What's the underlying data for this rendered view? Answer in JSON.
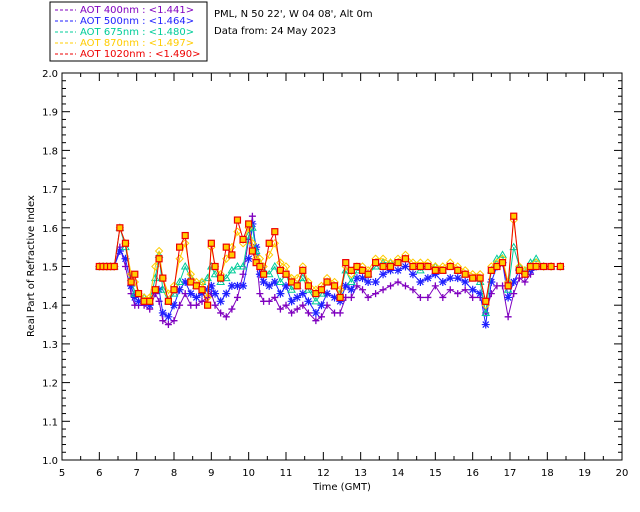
{
  "header": {
    "site": "PML, N 50 22', W 04 08', Alt 0m",
    "date": "Data from: 24 May 2023"
  },
  "chart_data": {
    "type": "line",
    "xlabel": "Time (GMT)",
    "ylabel": "Real Part of Refractive Index",
    "xlim": [
      5,
      20
    ],
    "ylim": [
      1.0,
      2.0
    ],
    "xticks": [
      "5",
      "6",
      "7",
      "8",
      "9",
      "10",
      "11",
      "12",
      "13",
      "14",
      "15",
      "16",
      "17",
      "18",
      "19",
      "20"
    ],
    "yticks": [
      "1.0",
      "1.1",
      "1.2",
      "1.3",
      "1.4",
      "1.5",
      "1.6",
      "1.7",
      "1.8",
      "1.9",
      "2.0"
    ],
    "legend_position": "top-left, outside plot",
    "series": [
      {
        "name": "AOT  400nm : <1.441>",
        "color": "#7f00bf",
        "marker": "plus",
        "x": [
          6.0,
          6.1,
          6.2,
          6.3,
          6.4,
          6.55,
          6.7,
          6.85,
          6.95,
          7.05,
          7.2,
          7.35,
          7.5,
          7.6,
          7.7,
          7.85,
          8.0,
          8.15,
          8.3,
          8.45,
          8.6,
          8.75,
          8.9,
          9.0,
          9.1,
          9.25,
          9.4,
          9.55,
          9.7,
          9.85,
          10.0,
          10.1,
          10.2,
          10.3,
          10.4,
          10.55,
          10.7,
          10.85,
          11.0,
          11.15,
          11.3,
          11.45,
          11.6,
          11.8,
          11.95,
          12.1,
          12.3,
          12.45,
          12.6,
          12.75,
          12.9,
          13.05,
          13.2,
          13.4,
          13.6,
          13.8,
          14.0,
          14.2,
          14.4,
          14.6,
          14.8,
          15.0,
          15.2,
          15.4,
          15.6,
          15.8,
          16.0,
          16.2,
          16.35,
          16.5,
          16.65,
          16.8,
          16.95,
          17.1,
          17.25,
          17.4,
          17.55,
          17.7,
          17.9,
          18.1,
          18.35
        ],
        "values": [
          1.5,
          1.5,
          1.5,
          1.5,
          1.5,
          1.55,
          1.5,
          1.43,
          1.4,
          1.4,
          1.4,
          1.39,
          1.43,
          1.41,
          1.36,
          1.35,
          1.36,
          1.4,
          1.43,
          1.4,
          1.4,
          1.41,
          1.42,
          1.43,
          1.4,
          1.38,
          1.37,
          1.39,
          1.42,
          1.48,
          1.57,
          1.63,
          1.53,
          1.43,
          1.41,
          1.41,
          1.42,
          1.39,
          1.4,
          1.38,
          1.39,
          1.4,
          1.38,
          1.36,
          1.37,
          1.4,
          1.38,
          1.38,
          1.42,
          1.42,
          1.45,
          1.44,
          1.42,
          1.43,
          1.44,
          1.45,
          1.46,
          1.45,
          1.44,
          1.42,
          1.42,
          1.45,
          1.42,
          1.44,
          1.43,
          1.44,
          1.42,
          1.42,
          1.38,
          1.43,
          1.45,
          1.45,
          1.37,
          1.43,
          1.47,
          1.46,
          1.48,
          1.5,
          1.5,
          1.5,
          1.5
        ]
      },
      {
        "name": "AOT  500nm : <1.464>",
        "color": "#1f1fff",
        "marker": "star",
        "x": [
          6.0,
          6.1,
          6.2,
          6.3,
          6.4,
          6.55,
          6.7,
          6.85,
          6.95,
          7.05,
          7.2,
          7.35,
          7.5,
          7.6,
          7.7,
          7.85,
          8.0,
          8.15,
          8.3,
          8.45,
          8.6,
          8.75,
          8.9,
          9.0,
          9.1,
          9.25,
          9.4,
          9.55,
          9.7,
          9.85,
          10.0,
          10.1,
          10.2,
          10.3,
          10.4,
          10.55,
          10.7,
          10.85,
          11.0,
          11.15,
          11.3,
          11.45,
          11.6,
          11.8,
          11.95,
          12.1,
          12.3,
          12.45,
          12.6,
          12.75,
          12.9,
          13.05,
          13.2,
          13.4,
          13.6,
          13.8,
          14.0,
          14.2,
          14.4,
          14.6,
          14.8,
          15.0,
          15.2,
          15.4,
          15.6,
          15.8,
          16.0,
          16.2,
          16.35,
          16.5,
          16.65,
          16.8,
          16.95,
          17.1,
          17.25,
          17.4,
          17.55,
          17.7,
          17.9,
          18.1,
          18.35
        ],
        "values": [
          1.5,
          1.5,
          1.5,
          1.5,
          1.5,
          1.54,
          1.52,
          1.45,
          1.42,
          1.41,
          1.41,
          1.4,
          1.44,
          1.44,
          1.38,
          1.37,
          1.4,
          1.44,
          1.46,
          1.43,
          1.42,
          1.43,
          1.44,
          1.45,
          1.43,
          1.41,
          1.43,
          1.45,
          1.45,
          1.45,
          1.52,
          1.61,
          1.55,
          1.48,
          1.46,
          1.45,
          1.46,
          1.43,
          1.45,
          1.41,
          1.42,
          1.43,
          1.41,
          1.38,
          1.4,
          1.43,
          1.42,
          1.41,
          1.45,
          1.44,
          1.47,
          1.47,
          1.46,
          1.46,
          1.48,
          1.49,
          1.49,
          1.5,
          1.48,
          1.46,
          1.47,
          1.48,
          1.46,
          1.47,
          1.47,
          1.46,
          1.44,
          1.43,
          1.35,
          1.46,
          1.5,
          1.51,
          1.42,
          1.46,
          1.49,
          1.48,
          1.49,
          1.5,
          1.5,
          1.5,
          1.5
        ]
      },
      {
        "name": "AOT  675nm : <1.480>",
        "color": "#00cc99",
        "marker": "triangle",
        "x": [
          6.0,
          6.1,
          6.2,
          6.3,
          6.4,
          6.55,
          6.7,
          6.85,
          6.95,
          7.05,
          7.2,
          7.35,
          7.5,
          7.6,
          7.7,
          7.85,
          8.0,
          8.15,
          8.3,
          8.45,
          8.6,
          8.75,
          8.9,
          9.0,
          9.1,
          9.25,
          9.4,
          9.55,
          9.7,
          9.85,
          10.0,
          10.1,
          10.2,
          10.3,
          10.4,
          10.55,
          10.7,
          10.85,
          11.0,
          11.15,
          11.3,
          11.45,
          11.6,
          11.8,
          11.95,
          12.1,
          12.3,
          12.45,
          12.6,
          12.75,
          12.9,
          13.05,
          13.2,
          13.4,
          13.6,
          13.8,
          14.0,
          14.2,
          14.4,
          14.6,
          14.8,
          15.0,
          15.2,
          15.4,
          15.6,
          15.8,
          16.0,
          16.2,
          16.35,
          16.5,
          16.65,
          16.8,
          16.95,
          17.1,
          17.25,
          17.4,
          17.55,
          17.7,
          17.9,
          18.1,
          18.35
        ],
        "values": [
          1.5,
          1.5,
          1.5,
          1.5,
          1.5,
          1.6,
          1.55,
          1.47,
          1.43,
          1.43,
          1.42,
          1.41,
          1.47,
          1.53,
          1.44,
          1.41,
          1.43,
          1.46,
          1.5,
          1.47,
          1.45,
          1.46,
          1.47,
          1.5,
          1.48,
          1.46,
          1.47,
          1.49,
          1.5,
          1.5,
          1.58,
          1.6,
          1.54,
          1.51,
          1.49,
          1.48,
          1.5,
          1.46,
          1.48,
          1.44,
          1.45,
          1.47,
          1.44,
          1.41,
          1.43,
          1.46,
          1.45,
          1.43,
          1.49,
          1.46,
          1.49,
          1.49,
          1.48,
          1.5,
          1.51,
          1.51,
          1.51,
          1.52,
          1.5,
          1.49,
          1.5,
          1.5,
          1.49,
          1.5,
          1.49,
          1.48,
          1.47,
          1.46,
          1.38,
          1.49,
          1.52,
          1.53,
          1.44,
          1.55,
          1.5,
          1.49,
          1.51,
          1.52,
          1.5,
          1.5,
          1.5
        ]
      },
      {
        "name": "AOT  870nm : <1.497>",
        "color": "#ffcc00",
        "marker": "diamond",
        "x": [
          6.0,
          6.1,
          6.2,
          6.3,
          6.4,
          6.55,
          6.7,
          6.85,
          6.95,
          7.05,
          7.2,
          7.35,
          7.5,
          7.6,
          7.7,
          7.85,
          8.0,
          8.15,
          8.3,
          8.45,
          8.6,
          8.75,
          8.9,
          9.0,
          9.1,
          9.25,
          9.4,
          9.55,
          9.7,
          9.85,
          10.0,
          10.1,
          10.2,
          10.3,
          10.4,
          10.55,
          10.7,
          10.85,
          11.0,
          11.15,
          11.3,
          11.45,
          11.6,
          11.8,
          11.95,
          12.1,
          12.3,
          12.45,
          12.6,
          12.75,
          12.9,
          13.05,
          13.2,
          13.4,
          13.6,
          13.8,
          14.0,
          14.2,
          14.4,
          14.6,
          14.8,
          15.0,
          15.2,
          15.4,
          15.6,
          15.8,
          16.0,
          16.2,
          16.35,
          16.5,
          16.65,
          16.8,
          16.95,
          17.1,
          17.25,
          17.4,
          17.55,
          17.7,
          17.9,
          18.1,
          18.35
        ],
        "values": [
          1.5,
          1.5,
          1.5,
          1.5,
          1.5,
          1.6,
          1.56,
          1.48,
          1.46,
          1.43,
          1.42,
          1.42,
          1.5,
          1.54,
          1.47,
          1.43,
          1.45,
          1.52,
          1.56,
          1.48,
          1.46,
          1.46,
          1.42,
          1.55,
          1.5,
          1.48,
          1.52,
          1.55,
          1.59,
          1.56,
          1.6,
          1.56,
          1.52,
          1.52,
          1.5,
          1.53,
          1.56,
          1.51,
          1.5,
          1.47,
          1.47,
          1.5,
          1.46,
          1.44,
          1.45,
          1.47,
          1.46,
          1.44,
          1.5,
          1.48,
          1.5,
          1.5,
          1.49,
          1.52,
          1.52,
          1.51,
          1.52,
          1.53,
          1.51,
          1.51,
          1.51,
          1.5,
          1.5,
          1.51,
          1.5,
          1.49,
          1.48,
          1.48,
          1.4,
          1.5,
          1.51,
          1.52,
          1.46,
          1.62,
          1.5,
          1.49,
          1.5,
          1.51,
          1.5,
          1.5,
          1.5
        ]
      },
      {
        "name": "AOT 1020nm : <1.490>",
        "color": "#ee0000",
        "marker": "square",
        "x": [
          6.0,
          6.1,
          6.2,
          6.3,
          6.4,
          6.55,
          6.7,
          6.85,
          6.95,
          7.05,
          7.2,
          7.35,
          7.5,
          7.6,
          7.7,
          7.85,
          8.0,
          8.15,
          8.3,
          8.45,
          8.6,
          8.75,
          8.9,
          9.0,
          9.1,
          9.25,
          9.4,
          9.55,
          9.7,
          9.85,
          10.0,
          10.1,
          10.2,
          10.3,
          10.4,
          10.55,
          10.7,
          10.85,
          11.0,
          11.15,
          11.3,
          11.45,
          11.6,
          11.8,
          11.95,
          12.1,
          12.3,
          12.45,
          12.6,
          12.75,
          12.9,
          13.05,
          13.2,
          13.4,
          13.6,
          13.8,
          14.0,
          14.2,
          14.4,
          14.6,
          14.8,
          15.0,
          15.2,
          15.4,
          15.6,
          15.8,
          16.0,
          16.2,
          16.35,
          16.5,
          16.65,
          16.8,
          16.95,
          17.1,
          17.25,
          17.4,
          17.55,
          17.7,
          17.9,
          18.1,
          18.35
        ],
        "values": [
          1.5,
          1.5,
          1.5,
          1.5,
          1.5,
          1.6,
          1.56,
          1.46,
          1.48,
          1.43,
          1.41,
          1.41,
          1.44,
          1.52,
          1.47,
          1.41,
          1.44,
          1.55,
          1.58,
          1.46,
          1.45,
          1.44,
          1.4,
          1.56,
          1.5,
          1.47,
          1.55,
          1.53,
          1.62,
          1.57,
          1.61,
          1.54,
          1.51,
          1.5,
          1.48,
          1.56,
          1.59,
          1.49,
          1.48,
          1.46,
          1.45,
          1.49,
          1.45,
          1.43,
          1.44,
          1.46,
          1.45,
          1.42,
          1.51,
          1.49,
          1.5,
          1.49,
          1.48,
          1.51,
          1.5,
          1.5,
          1.51,
          1.52,
          1.5,
          1.5,
          1.5,
          1.49,
          1.49,
          1.5,
          1.49,
          1.48,
          1.47,
          1.47,
          1.41,
          1.49,
          1.5,
          1.51,
          1.45,
          1.63,
          1.49,
          1.48,
          1.5,
          1.5,
          1.5,
          1.5,
          1.5
        ]
      }
    ]
  }
}
